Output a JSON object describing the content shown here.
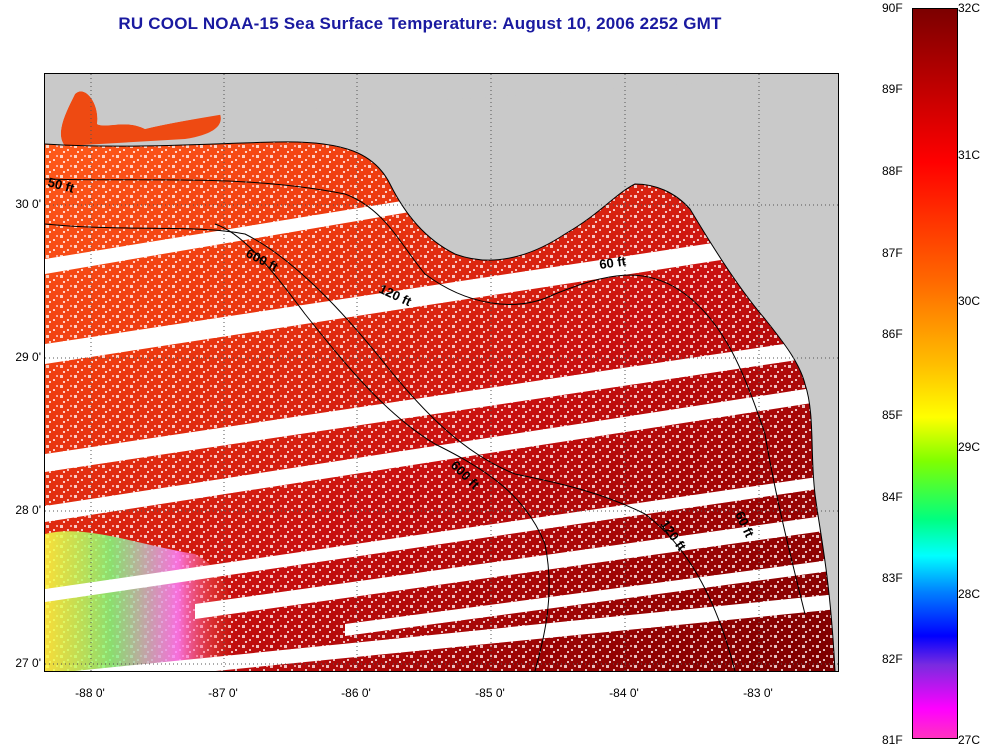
{
  "title": "RU COOL  NOAA-15  Sea Surface Temperature:  August 10, 2006 2252 GMT",
  "map": {
    "latitude_labels": [
      "30 0'",
      "29 0'",
      "28 0'",
      "27 0'"
    ],
    "longitude_labels": [
      "-88 0'",
      "-87 0'",
      "-86 0'",
      "-85 0'",
      "-84 0'",
      "-83 0'"
    ],
    "contour_labels": [
      "50 ft",
      "600 ft",
      "120 ft",
      "60 ft",
      "600 ft",
      "120 ft",
      "60 ft"
    ],
    "land_color": "#c9c9c9",
    "gap_color": "#ffffff"
  },
  "colorbar": {
    "fahrenheit_labels": [
      "90F",
      "89F",
      "88F",
      "87F",
      "86F",
      "85F",
      "84F",
      "83F",
      "82F",
      "81F"
    ],
    "celsius_labels": [
      "32C",
      "31C",
      "30C",
      "29C",
      "28C",
      "27C"
    ],
    "colors": [
      "#7c0000",
      "#ff0000",
      "#ff6600",
      "#ffc000",
      "#ffff00",
      "#80ff00",
      "#00ff80",
      "#00ffff",
      "#0080ff",
      "#0000ff",
      "#7a2be0",
      "#ff00ff"
    ]
  }
}
